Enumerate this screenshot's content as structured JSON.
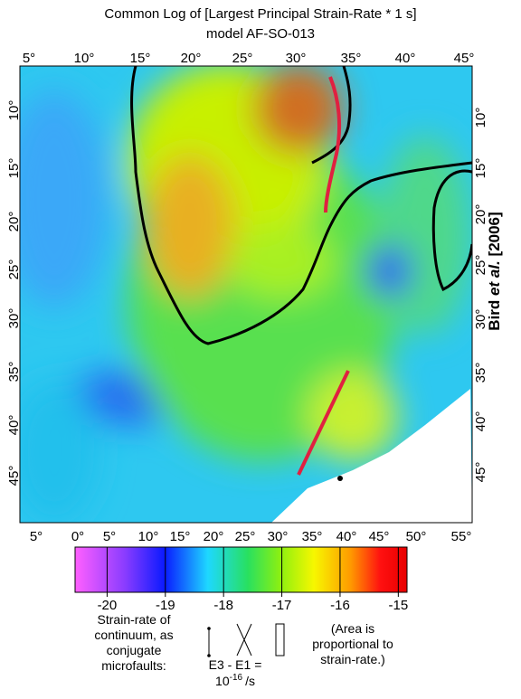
{
  "header": {
    "title": "Common Log of [Largest Principal Strain-Rate * 1 s]",
    "subtitle": "model AF-SO-013"
  },
  "map": {
    "top_labels": [
      "5°",
      "10°",
      "15°",
      "20°",
      "25°",
      "30°",
      "35°",
      "40°",
      "45°"
    ],
    "bottom_labels": [
      "5°",
      "0°",
      "5°",
      "10°",
      "15°",
      "20°",
      "25°",
      "30°",
      "35°",
      "40°",
      "45°",
      "50°",
      "55°"
    ],
    "left_labels": [
      "10°",
      "15°",
      "20°",
      "25°",
      "30°",
      "35°",
      "40°",
      "45°"
    ],
    "right_labels": [
      "10°",
      "15°",
      "20°",
      "25°",
      "30°",
      "35°",
      "40°",
      "45°"
    ],
    "credit": {
      "name": "Bird",
      "etal": "et al.",
      "year": "[2006]"
    }
  },
  "colorbar": {
    "range": [
      -20.55,
      -14.85
    ],
    "ticks": [
      -20,
      -19,
      -18,
      -17,
      -16,
      -15
    ]
  },
  "legend": {
    "left": [
      "Strain-rate of",
      "continuum, as",
      "conjugate",
      "microfaults:"
    ],
    "unit": {
      "line1": "E3 - E1 =",
      "base": "10",
      "exponent": "-16",
      "suffix": "/s"
    },
    "right": [
      "(Area is",
      "proportional to",
      "strain-rate.)"
    ]
  }
}
